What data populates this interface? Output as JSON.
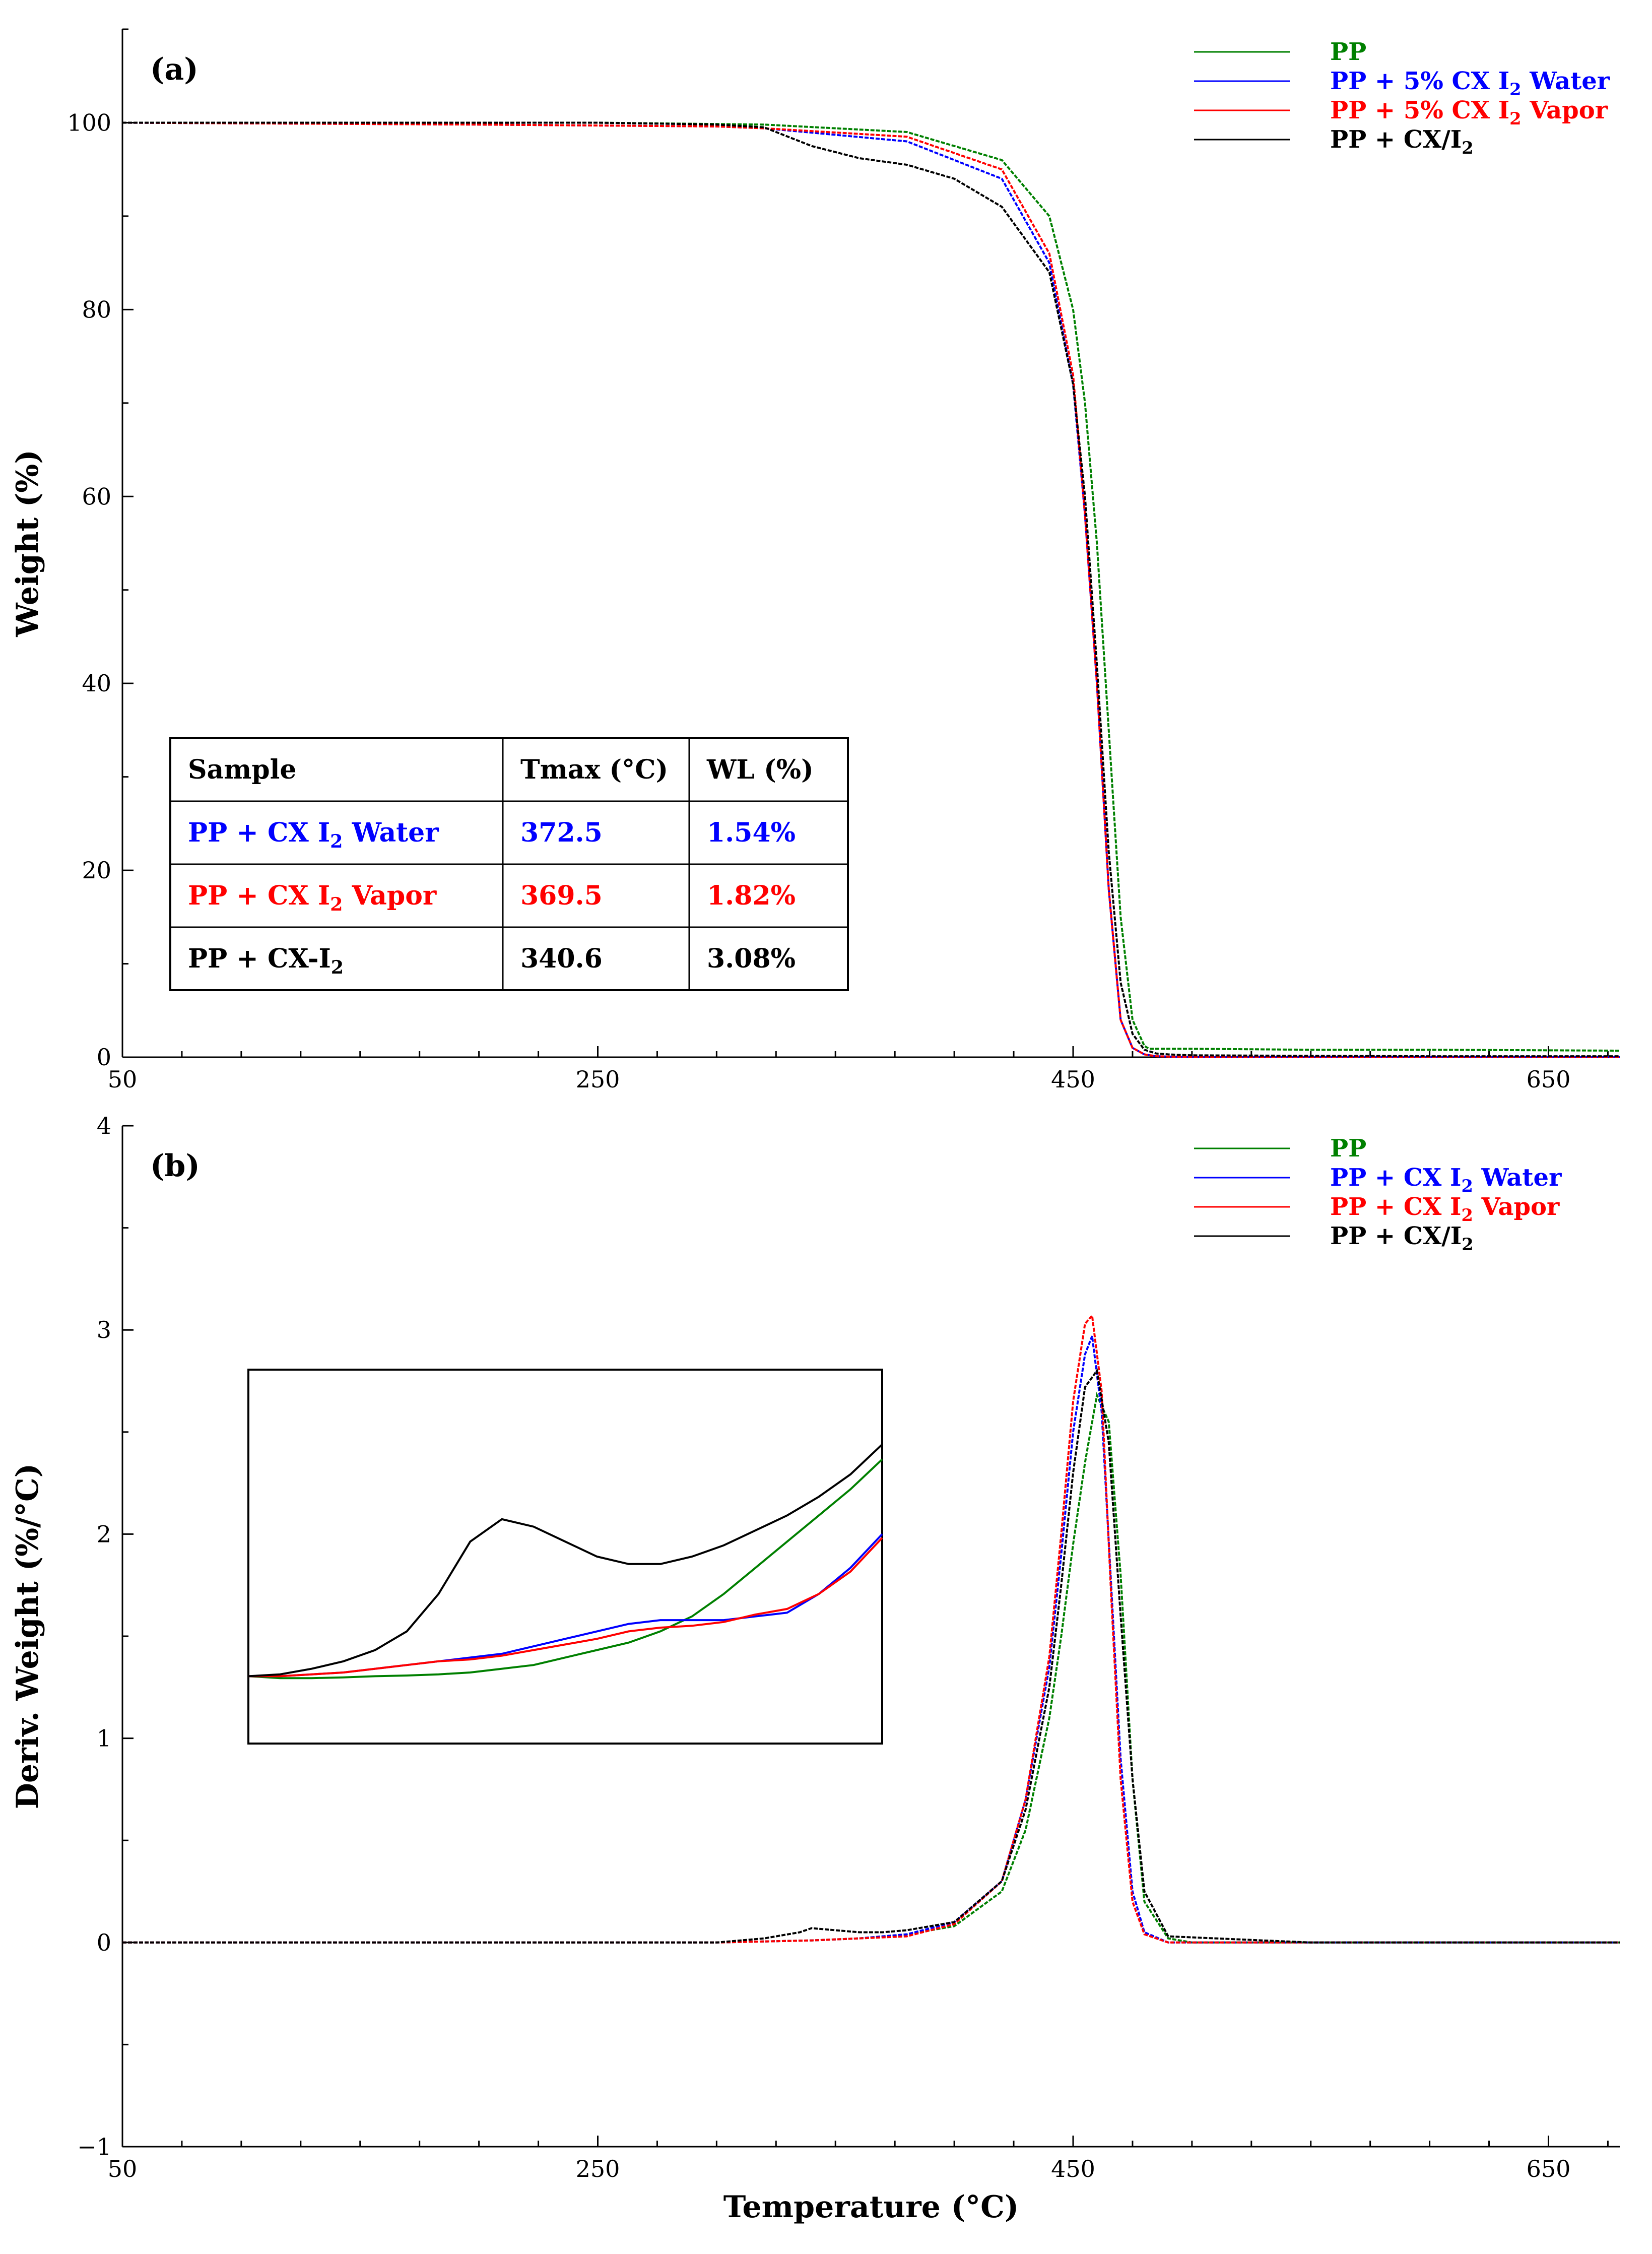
{
  "colors": {
    "PP": "#008000",
    "water": "#0000ff",
    "vapor": "#ff0000",
    "cx": "#000000"
  },
  "chart_data": [
    {
      "id": "a",
      "type": "line",
      "panel_label": "(a)",
      "title": "",
      "xlabel": "",
      "ylabel": "Weight (%)",
      "xlim": [
        50,
        680
      ],
      "ylim": [
        0,
        110
      ],
      "x_ticks": [
        50,
        250,
        450,
        650
      ],
      "y_ticks": [
        0,
        20,
        40,
        60,
        80,
        100
      ],
      "legend": [
        "PP",
        "PP + 5% CX I2 Water",
        "PP + 5% CX I2 Vapor",
        "PP + CX/I2"
      ],
      "legend_position": "top-right",
      "series": [
        {
          "name": "PP",
          "color": "#008000",
          "x": [
            50,
            250,
            320,
            380,
            420,
            440,
            450,
            455,
            460,
            465,
            470,
            475,
            480,
            482,
            485,
            490,
            500,
            550,
            600,
            680
          ],
          "y": [
            100,
            100,
            99.8,
            99,
            96,
            90,
            80,
            70,
            55,
            35,
            15,
            4,
            1.2,
            0.9,
            0.9,
            0.9,
            0.9,
            0.8,
            0.8,
            0.7
          ]
        },
        {
          "name": "PP + 5% CX I2 Water",
          "color": "#0000ff",
          "x": [
            50,
            200,
            300,
            320,
            380,
            420,
            440,
            450,
            455,
            460,
            465,
            470,
            475,
            480,
            485,
            500,
            600,
            680
          ],
          "y": [
            100,
            99.8,
            99.6,
            99.4,
            98,
            94,
            85,
            72,
            58,
            40,
            18,
            4,
            1,
            0.3,
            0.1,
            0,
            0,
            0
          ]
        },
        {
          "name": "PP + 5% CX I2 Vapor",
          "color": "#ff0000",
          "x": [
            50,
            200,
            300,
            320,
            380,
            420,
            440,
            450,
            455,
            460,
            465,
            470,
            475,
            480,
            485,
            500,
            600,
            680
          ],
          "y": [
            100,
            99.8,
            99.6,
            99.4,
            98.5,
            95,
            86,
            73,
            58,
            40,
            18,
            4,
            1,
            0.3,
            0.1,
            0,
            0,
            0
          ]
        },
        {
          "name": "PP + CX/I2",
          "color": "#000000",
          "x": [
            50,
            250,
            300,
            320,
            340,
            360,
            380,
            400,
            420,
            440,
            450,
            455,
            460,
            465,
            470,
            475,
            480,
            485,
            490,
            500,
            600,
            680
          ],
          "y": [
            100,
            100,
            99.8,
            99.5,
            97.5,
            96.2,
            95.5,
            94,
            91,
            84,
            72,
            60,
            42,
            22,
            8,
            2.5,
            0.8,
            0.4,
            0.3,
            0.2,
            0.1,
            0.1
          ]
        }
      ],
      "table": {
        "headers": [
          "Sample",
          "Tmax (°C)",
          "WL (%)"
        ],
        "rows": [
          {
            "sample": "PP + CX I",
            "sub": "2",
            "suffix": " Water",
            "tmax": "372.5",
            "wl": "1.54%",
            "color": "#0000ff",
            "bold": true
          },
          {
            "sample": "PP + CX I",
            "sub": "2",
            "suffix": " Vapor",
            "tmax": "369.5",
            "wl": "1.82%",
            "color": "#ff0000",
            "bold": true
          },
          {
            "sample": "PP + CX-I",
            "sub": "2",
            "suffix": "",
            "tmax": "340.6",
            "wl": "3.08%",
            "color": "#000000",
            "bold": true
          }
        ]
      }
    },
    {
      "id": "b",
      "type": "line",
      "panel_label": "(b)",
      "title": "",
      "xlabel": "Temperature (°C)",
      "ylabel": "Deriv. Weight (%/°C)",
      "xlim": [
        50,
        680
      ],
      "ylim": [
        -1,
        4
      ],
      "x_ticks": [
        50,
        250,
        450,
        650
      ],
      "y_ticks": [
        -1,
        0,
        1,
        2,
        3,
        4
      ],
      "legend": [
        "PP",
        "PP + CX I2 Water",
        "PP + CX I2 Vapor",
        "PP + CX/I2"
      ],
      "legend_position": "top-right",
      "series": [
        {
          "name": "PP",
          "color": "#008000",
          "x": [
            50,
            300,
            340,
            360,
            380,
            400,
            420,
            430,
            440,
            445,
            450,
            455,
            460,
            465,
            470,
            475,
            480,
            490,
            500,
            550,
            680
          ],
          "y": [
            0,
            0,
            0.01,
            0.02,
            0.04,
            0.08,
            0.25,
            0.55,
            1.1,
            1.5,
            1.95,
            2.35,
            2.68,
            2.55,
            1.8,
            0.8,
            0.2,
            0.02,
            0,
            0,
            0
          ]
        },
        {
          "name": "PP + CX I2 Water",
          "color": "#0000ff",
          "x": [
            50,
            300,
            340,
            360,
            380,
            400,
            420,
            430,
            440,
            445,
            450,
            455,
            458,
            462,
            466,
            470,
            475,
            480,
            490,
            550,
            680
          ],
          "y": [
            0,
            0,
            0.01,
            0.02,
            0.04,
            0.1,
            0.3,
            0.7,
            1.35,
            1.9,
            2.5,
            2.88,
            2.97,
            2.6,
            1.75,
            0.9,
            0.25,
            0.05,
            0,
            0,
            0
          ]
        },
        {
          "name": "PP + CX I2 Vapor",
          "color": "#ff0000",
          "x": [
            50,
            300,
            340,
            360,
            380,
            400,
            420,
            430,
            440,
            445,
            450,
            455,
            458,
            462,
            466,
            470,
            475,
            480,
            490,
            550,
            680
          ],
          "y": [
            0,
            0,
            0.01,
            0.02,
            0.03,
            0.09,
            0.3,
            0.7,
            1.4,
            2.0,
            2.65,
            3.03,
            3.07,
            2.7,
            1.7,
            0.8,
            0.2,
            0.04,
            0,
            0,
            0
          ]
        },
        {
          "name": "PP + CX/I2",
          "color": "#000000",
          "x": [
            50,
            300,
            320,
            335,
            340,
            350,
            360,
            370,
            380,
            400,
            420,
            430,
            440,
            445,
            450,
            455,
            460,
            465,
            470,
            475,
            480,
            490,
            550,
            680
          ],
          "y": [
            0,
            0,
            0.02,
            0.05,
            0.07,
            0.06,
            0.05,
            0.05,
            0.06,
            0.1,
            0.3,
            0.65,
            1.25,
            1.75,
            2.3,
            2.72,
            2.8,
            2.45,
            1.6,
            0.8,
            0.25,
            0.03,
            0,
            0
          ]
        }
      ],
      "inset": {
        "x": [
          0,
          0.05,
          0.1,
          0.15,
          0.2,
          0.25,
          0.3,
          0.35,
          0.4,
          0.45,
          0.5,
          0.55,
          0.6,
          0.65,
          0.7,
          0.75,
          0.8,
          0.85,
          0.9,
          0.95,
          1
        ],
        "series": [
          {
            "name": "PP",
            "color": "#008000",
            "y": [
              0.82,
              0.825,
              0.825,
              0.823,
              0.82,
              0.818,
              0.815,
              0.81,
              0.8,
              0.79,
              0.77,
              0.75,
              0.73,
              0.7,
              0.66,
              0.6,
              0.53,
              0.46,
              0.39,
              0.32,
              0.24
            ]
          },
          {
            "name": "PP + CX I2 Water",
            "color": "#0000ff",
            "y": [
              0.82,
              0.82,
              0.815,
              0.81,
              0.8,
              0.79,
              0.78,
              0.77,
              0.76,
              0.74,
              0.72,
              0.7,
              0.68,
              0.67,
              0.67,
              0.67,
              0.66,
              0.65,
              0.6,
              0.53,
              0.44
            ]
          },
          {
            "name": "PP + CX I2 Vapor",
            "color": "#ff0000",
            "y": [
              0.82,
              0.82,
              0.815,
              0.81,
              0.8,
              0.79,
              0.78,
              0.775,
              0.765,
              0.75,
              0.735,
              0.72,
              0.7,
              0.69,
              0.685,
              0.675,
              0.655,
              0.64,
              0.6,
              0.54,
              0.45
            ]
          },
          {
            "name": "PP + CX/I2",
            "color": "#000000",
            "y": [
              0.82,
              0.815,
              0.8,
              0.78,
              0.75,
              0.7,
              0.6,
              0.46,
              0.4,
              0.42,
              0.46,
              0.5,
              0.52,
              0.52,
              0.5,
              0.47,
              0.43,
              0.39,
              0.34,
              0.28,
              0.2
            ]
          }
        ]
      }
    }
  ]
}
